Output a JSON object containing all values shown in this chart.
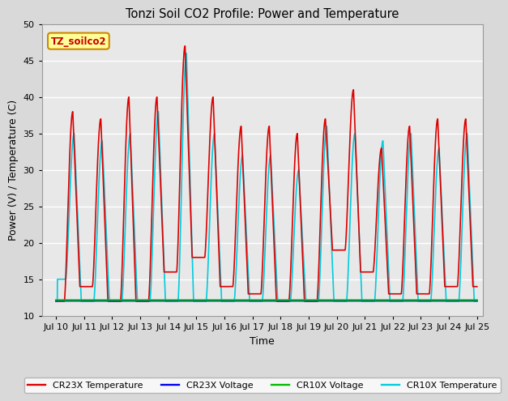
{
  "title": "Tonzi Soil CO2 Profile: Power and Temperature",
  "xlabel": "Time",
  "ylabel": "Power (V) / Temperature (C)",
  "ylim": [
    10,
    50
  ],
  "yticks": [
    10,
    15,
    20,
    25,
    30,
    35,
    40,
    45,
    50
  ],
  "xlim_start": 9.5,
  "xlim_end": 25.2,
  "xtick_labels": [
    "Jul 10",
    "Jul 11",
    "Jul 12",
    "Jul 13",
    "Jul 14",
    "Jul 15",
    "Jul 16",
    "Jul 17",
    "Jul 18",
    "Jul 19",
    "Jul 20",
    "Jul 21",
    "Jul 22",
    "Jul 23",
    "Jul 24",
    "Jul 25"
  ],
  "xtick_positions": [
    10,
    11,
    12,
    13,
    14,
    15,
    16,
    17,
    18,
    19,
    20,
    21,
    22,
    23,
    24,
    25
  ],
  "outer_bg_color": "#d9d9d9",
  "plot_bg_color": "#e8e8e8",
  "grid_color": "#ffffff",
  "cr23x_temp_color": "#dd0000",
  "cr23x_volt_color": "#0000ee",
  "cr10x_volt_color": "#00bb00",
  "cr10x_temp_color": "#00ccdd",
  "annotation_text": "TZ_soilco2",
  "annotation_bg": "#ffff99",
  "annotation_border": "#cc8800",
  "legend_labels": [
    "CR23X Temperature",
    "CR23X Voltage",
    "CR10X Voltage",
    "CR10X Temperature"
  ],
  "legend_colors": [
    "#dd0000",
    "#0000ee",
    "#00bb00",
    "#00ccdd"
  ],
  "base_voltage": 12.0,
  "line_width": 1.2,
  "cr23x_peaks": [
    38,
    37,
    40,
    40,
    47,
    40,
    36,
    36,
    35,
    37,
    41,
    33,
    36,
    37,
    37
  ],
  "cr23x_troughs": [
    12,
    14,
    12,
    12,
    16,
    18,
    14,
    13,
    12,
    12,
    19,
    16,
    13,
    13,
    14
  ],
  "cr10x_peaks": [
    35,
    34,
    35,
    38,
    46,
    35,
    32,
    32,
    30,
    36,
    35,
    34,
    35,
    33,
    35
  ],
  "cr10x_troughs": [
    15,
    12,
    12,
    12,
    12,
    12,
    12,
    12,
    12,
    12,
    12,
    12,
    12,
    12,
    12
  ]
}
